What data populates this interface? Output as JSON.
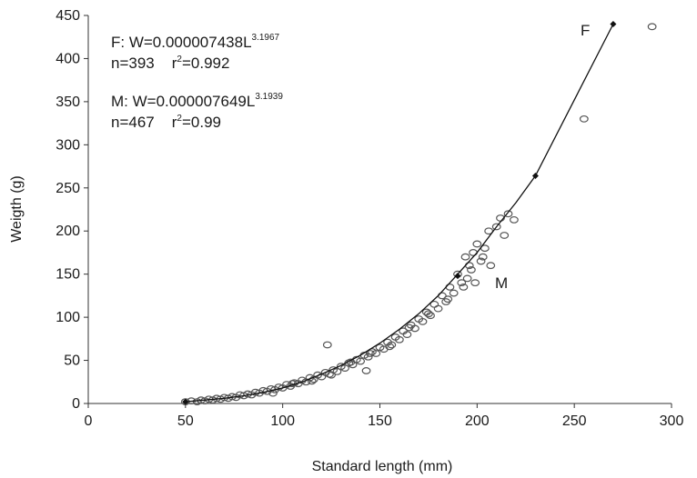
{
  "chart_data": {
    "type": "scatter",
    "xlabel": "Standard length (mm)",
    "ylabel": "Weigth (g)",
    "xlim": [
      0,
      300
    ],
    "ylim": [
      0,
      450
    ],
    "xticks": [
      0,
      50,
      100,
      150,
      200,
      250,
      300
    ],
    "yticks": [
      0,
      50,
      100,
      150,
      200,
      250,
      300,
      350,
      400,
      450
    ],
    "grid": false,
    "annotations": {
      "f_equation_prefix": "F: W=0.000007438L",
      "f_exponent": "3.1967",
      "f_stats_n": "n=393",
      "f_stats_r_prefix": "r",
      "f_stats_r_sup": "2",
      "f_stats_r_value": "=0.992",
      "m_equation_prefix": "M:  W=0.000007649L",
      "m_exponent": "3.1939",
      "m_stats_n": "n=467",
      "m_stats_r_prefix": "r",
      "m_stats_r_sup": "2",
      "m_stats_r_value": "=0.99",
      "f_label": "F",
      "m_label": "M"
    },
    "fit_line": {
      "x": [
        50,
        60,
        70,
        80,
        90,
        100,
        110,
        120,
        130,
        140,
        150,
        160,
        170,
        180,
        190,
        200,
        210,
        220,
        230,
        270
      ],
      "y": [
        2,
        4,
        6,
        9,
        13,
        18,
        25,
        34,
        44,
        56,
        70,
        86,
        104,
        125,
        150,
        175,
        205,
        233,
        264,
        440
      ]
    },
    "fit_markers": {
      "x": [
        50,
        190,
        230,
        270
      ],
      "y": [
        2,
        148,
        264,
        440
      ]
    },
    "series": [
      {
        "marker": "open-circle",
        "points": [
          [
            50,
            2
          ],
          [
            53,
            3
          ],
          [
            56,
            2
          ],
          [
            58,
            4
          ],
          [
            60,
            3
          ],
          [
            62,
            5
          ],
          [
            64,
            4
          ],
          [
            66,
            6
          ],
          [
            68,
            5
          ],
          [
            70,
            7
          ],
          [
            72,
            6
          ],
          [
            74,
            8
          ],
          [
            76,
            7
          ],
          [
            78,
            10
          ],
          [
            80,
            9
          ],
          [
            82,
            11
          ],
          [
            84,
            10
          ],
          [
            86,
            13
          ],
          [
            88,
            12
          ],
          [
            90,
            15
          ],
          [
            92,
            14
          ],
          [
            94,
            17
          ],
          [
            96,
            16
          ],
          [
            98,
            19
          ],
          [
            100,
            18
          ],
          [
            102,
            22
          ],
          [
            104,
            20
          ],
          [
            106,
            24
          ],
          [
            108,
            23
          ],
          [
            110,
            27
          ],
          [
            112,
            25
          ],
          [
            114,
            30
          ],
          [
            116,
            28
          ],
          [
            118,
            33
          ],
          [
            120,
            31
          ],
          [
            122,
            36
          ],
          [
            123,
            68
          ],
          [
            124,
            34
          ],
          [
            126,
            39
          ],
          [
            128,
            37
          ],
          [
            130,
            43
          ],
          [
            132,
            41
          ],
          [
            134,
            47
          ],
          [
            136,
            45
          ],
          [
            138,
            51
          ],
          [
            140,
            49
          ],
          [
            142,
            56
          ],
          [
            143,
            38
          ],
          [
            144,
            54
          ],
          [
            146,
            60
          ],
          [
            148,
            58
          ],
          [
            150,
            65
          ],
          [
            152,
            63
          ],
          [
            154,
            71
          ],
          [
            156,
            68
          ],
          [
            158,
            77
          ],
          [
            160,
            74
          ],
          [
            162,
            84
          ],
          [
            164,
            80
          ],
          [
            166,
            91
          ],
          [
            168,
            87
          ],
          [
            170,
            98
          ],
          [
            172,
            95
          ],
          [
            174,
            106
          ],
          [
            176,
            102
          ],
          [
            178,
            115
          ],
          [
            180,
            110
          ],
          [
            182,
            125
          ],
          [
            184,
            118
          ],
          [
            186,
            135
          ],
          [
            188,
            128
          ],
          [
            190,
            150
          ],
          [
            192,
            140
          ],
          [
            194,
            170
          ],
          [
            196,
            160
          ],
          [
            198,
            175
          ],
          [
            200,
            185
          ],
          [
            202,
            165
          ],
          [
            204,
            180
          ],
          [
            206,
            200
          ],
          [
            210,
            205
          ],
          [
            212,
            215
          ],
          [
            214,
            195
          ],
          [
            216,
            220
          ],
          [
            219,
            213
          ],
          [
            255,
            330
          ],
          [
            290,
            437
          ],
          [
            95,
            12
          ],
          [
            105,
            23
          ],
          [
            115,
            26
          ],
          [
            125,
            33
          ],
          [
            135,
            48
          ],
          [
            145,
            58
          ],
          [
            155,
            66
          ],
          [
            165,
            88
          ],
          [
            175,
            104
          ],
          [
            185,
            121
          ],
          [
            193,
            135
          ],
          [
            195,
            145
          ],
          [
            197,
            155
          ],
          [
            199,
            140
          ],
          [
            203,
            170
          ],
          [
            207,
            160
          ]
        ]
      }
    ]
  }
}
